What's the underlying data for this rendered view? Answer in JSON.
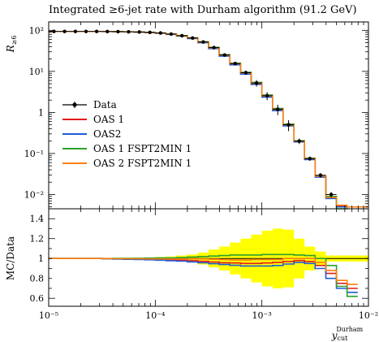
{
  "chart_data": {
    "type": "line",
    "title": "Integrated ≥6-jet rate with Durham algorithm (91.2 GeV)",
    "x_axis": {
      "scale": "log",
      "xlim": [
        1e-05,
        0.01
      ],
      "label_main": "y",
      "label_sub": "cut",
      "label_sup": "Durham",
      "ticks": [
        {
          "value": 1e-05,
          "label": "10⁻⁵"
        },
        {
          "value": 0.0001,
          "label": "10⁻⁴"
        },
        {
          "value": 0.001,
          "label": "10⁻³"
        },
        {
          "value": 0.01,
          "label": "10⁻²"
        }
      ]
    },
    "main_panel": {
      "ylabel_main": "R",
      "ylabel_sub": "≥6",
      "yscale": "log",
      "ylim": [
        0.0045,
        160
      ],
      "yticks": [
        {
          "value": 100,
          "label": "10²"
        },
        {
          "value": 10,
          "label": "10¹"
        },
        {
          "value": 1,
          "label": "1"
        },
        {
          "value": 0.1,
          "label": "10⁻¹"
        },
        {
          "value": 0.01,
          "label": "10⁻²"
        }
      ],
      "bin_edges": [
        1e-05,
        1.26e-05,
        1.58e-05,
        2e-05,
        2.51e-05,
        3.16e-05,
        3.98e-05,
        5.01e-05,
        6.31e-05,
        7.94e-05,
        0.0001,
        0.000126,
        0.000158,
        0.0002,
        0.000251,
        0.000316,
        0.000398,
        0.000501,
        0.000631,
        0.000794,
        0.001,
        0.00126,
        0.00158,
        0.002,
        0.00251,
        0.00316,
        0.00398,
        0.00501,
        0.00631,
        0.00794,
        0.01
      ],
      "data": {
        "x": [
          1.12e-05,
          1.41e-05,
          1.78e-05,
          2.24e-05,
          2.82e-05,
          3.55e-05,
          4.47e-05,
          5.62e-05,
          7.08e-05,
          8.91e-05,
          0.000112,
          0.000141,
          0.000178,
          0.000224,
          0.000282,
          0.000355,
          0.000447,
          0.000562,
          0.000708,
          0.000891,
          0.00112,
          0.00141,
          0.00178,
          0.00224,
          0.00282,
          0.00355,
          0.00447,
          0.00562,
          0.00708,
          0.00891
        ],
        "y": [
          94,
          94,
          94,
          94,
          94,
          93.5,
          93,
          92,
          91,
          89,
          86,
          81,
          74,
          65,
          52,
          38,
          25,
          15.5,
          9.3,
          5.2,
          2.55,
          1.2,
          0.5,
          0.2,
          0.075,
          0.0295,
          0.01,
          0.005,
          0.005,
          0.005
        ],
        "yerr_rel": [
          0.02,
          0.02,
          0.02,
          0.02,
          0.02,
          0.02,
          0.02,
          0.02,
          0.02,
          0.02,
          0.02,
          0.02,
          0.03,
          0.03,
          0.04,
          0.05,
          0.06,
          0.08,
          0.12,
          0.18,
          0.22,
          0.28,
          0.3,
          0.15,
          0.12,
          0.12,
          0.15,
          0.2,
          0.2,
          0.2
        ],
        "n_points": 27
      },
      "series": [
        {
          "name": "OAS 1",
          "color": "#e41a1c",
          "y": [
            94,
            94,
            94,
            94,
            94,
            93.3,
            92.6,
            91.6,
            90.4,
            88.2,
            85,
            80,
            72.7,
            63.5,
            50.5,
            36.5,
            24,
            14.8,
            8.8,
            4.9,
            2.4,
            1.13,
            0.48,
            0.195,
            0.073,
            0.0275,
            0.0085,
            0.0052,
            0.005,
            0.005
          ]
        },
        {
          "name": "OAS2",
          "color": "#1f5bd6",
          "y": [
            94,
            94,
            94,
            94,
            94,
            93.2,
            92.4,
            91.4,
            90.1,
            87.9,
            84.6,
            79.5,
            72.1,
            62.8,
            49.8,
            35.8,
            23.5,
            14.4,
            8.6,
            4.8,
            2.35,
            1.1,
            0.47,
            0.19,
            0.071,
            0.0265,
            0.008,
            0.005,
            0.005,
            0.005
          ]
        },
        {
          "name": "OAS 1 FSPT2MIN 1",
          "color": "#2ca02c",
          "y": [
            94,
            94,
            94,
            94,
            94,
            93.5,
            93,
            92,
            91,
            89.1,
            86.2,
            81.3,
            74.3,
            65.5,
            52.7,
            38.5,
            25.5,
            15.9,
            9.5,
            5.4,
            2.65,
            1.25,
            0.52,
            0.205,
            0.077,
            0.0285,
            0.009,
            0.0045,
            0.005,
            0.005
          ]
        },
        {
          "name": "OAS 2 FSPT2MIN 1",
          "color": "#ff7f0e",
          "y": [
            94,
            94,
            94,
            94,
            94,
            93.4,
            92.8,
            91.8,
            90.7,
            88.7,
            85.7,
            80.7,
            73.5,
            64.5,
            51.6,
            37.6,
            24.8,
            15.4,
            9.2,
            5.15,
            2.52,
            1.19,
            0.5,
            0.2,
            0.075,
            0.028,
            0.0085,
            0.0055,
            0.005,
            0.005
          ]
        }
      ],
      "legend": {
        "placement": "center-left",
        "entries": [
          "Data",
          "OAS 1",
          "OAS2",
          "OAS 1 FSPT2MIN 1",
          "OAS 2 FSPT2MIN 1"
        ]
      }
    },
    "ratio_panel": {
      "ylabel": "MC/Data",
      "ylim": [
        0.52,
        1.5
      ],
      "yticks": [
        {
          "value": 0.6,
          "label": "0.6"
        },
        {
          "value": 0.8,
          "label": "0.8"
        },
        {
          "value": 1.0,
          "label": "1"
        },
        {
          "value": 1.2,
          "label": "1.2"
        },
        {
          "value": 1.4,
          "label": "1.4"
        }
      ],
      "band_color": "#ffff00",
      "band_halfwidth": [
        0.005,
        0.005,
        0.005,
        0.005,
        0.005,
        0.006,
        0.006,
        0.007,
        0.008,
        0.01,
        0.015,
        0.02,
        0.03,
        0.04,
        0.06,
        0.09,
        0.12,
        0.16,
        0.2,
        0.24,
        0.28,
        0.3,
        0.29,
        0.2,
        0.12,
        0.07,
        0.03,
        0.03,
        0.03,
        0.03
      ],
      "series": [
        {
          "name": "OAS 1",
          "color": "#e41a1c",
          "ratio": [
            1,
            1,
            1,
            1,
            1,
            0.998,
            0.996,
            0.995,
            0.993,
            0.991,
            0.988,
            0.985,
            0.982,
            0.978,
            0.972,
            0.965,
            0.958,
            0.955,
            0.95,
            0.95,
            0.955,
            0.96,
            0.97,
            0.98,
            0.97,
            0.93,
            0.85,
            0.75,
            0.7,
            0.7
          ],
          "n_bins": 29
        },
        {
          "name": "OAS2",
          "color": "#1f5bd6",
          "ratio": [
            1,
            1,
            1,
            1,
            1,
            0.997,
            0.994,
            0.992,
            0.99,
            0.987,
            0.983,
            0.978,
            0.973,
            0.966,
            0.958,
            0.948,
            0.94,
            0.932,
            0.925,
            0.925,
            0.925,
            0.93,
            0.945,
            0.96,
            0.95,
            0.9,
            0.8,
            0.7,
            0.66,
            0.66
          ],
          "n_bins": 29
        },
        {
          "name": "OAS 1 FSPT2MIN 1",
          "color": "#2ca02c",
          "ratio": [
            1,
            1,
            1,
            1,
            1,
            1,
            1.001,
            1.002,
            1.003,
            1.004,
            1.005,
            1.007,
            1.01,
            1.015,
            1.02,
            1.025,
            1.03,
            1.035,
            1.035,
            1.035,
            1.04,
            1.04,
            1.04,
            1.035,
            1.03,
            1.0,
            0.93,
            0.72,
            0.62,
            0.62
          ],
          "n_bins": 29
        },
        {
          "name": "OAS 2 FSPT2MIN 1",
          "color": "#ff7f0e",
          "ratio": [
            1,
            1,
            1,
            1,
            1,
            0.999,
            0.998,
            0.998,
            0.997,
            0.996,
            0.995,
            0.995,
            0.995,
            0.996,
            0.995,
            0.993,
            0.99,
            0.985,
            0.985,
            0.99,
            0.99,
            0.99,
            1.0,
            1.0,
            1.0,
            0.96,
            0.88,
            0.78,
            0.74,
            0.74
          ],
          "n_bins": 29
        }
      ]
    },
    "grid": false
  }
}
